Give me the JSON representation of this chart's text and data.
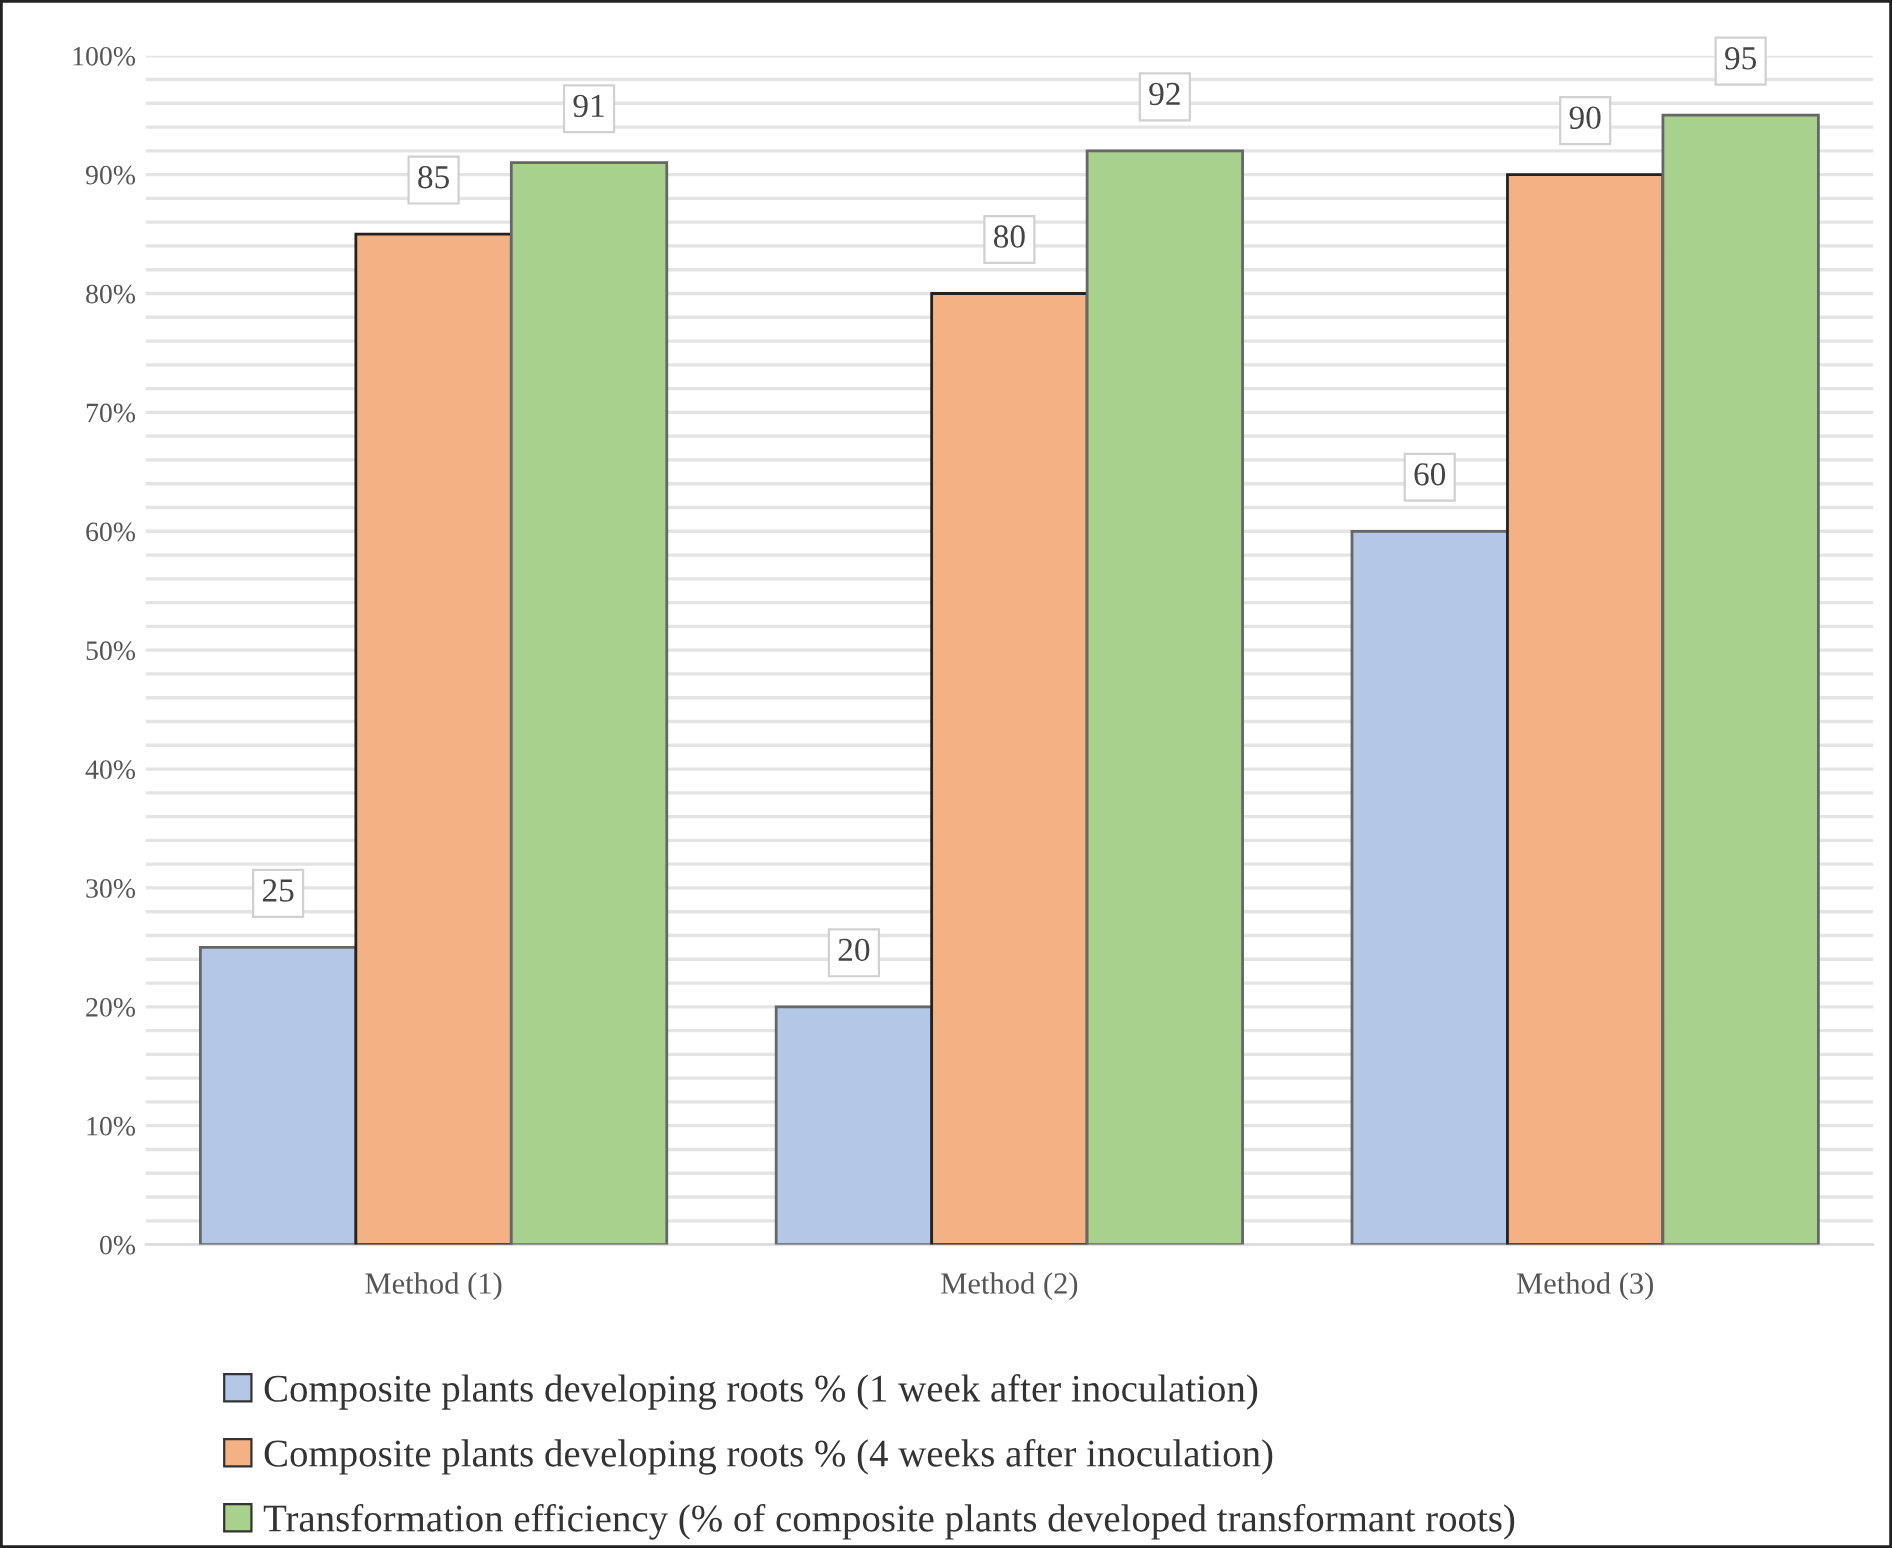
{
  "chart_data": {
    "type": "bar",
    "categories": [
      "Method (1)",
      "Method (2)",
      "Method (3)"
    ],
    "series": [
      {
        "name": "Composite plants developing roots % (1 week after inoculation)",
        "color": "#b4c7e7",
        "values": [
          25,
          20,
          60
        ]
      },
      {
        "name": "Composite plants developing roots % (4 weeks after inoculation)",
        "color": "#f4b183",
        "values": [
          85,
          80,
          90
        ]
      },
      {
        "name": "Transformation efficiency (% of composite plants developed transformant roots)",
        "color": "#a9d18e",
        "values": [
          91,
          92,
          95
        ]
      }
    ],
    "ylim": [
      0,
      100
    ],
    "yticks": [
      {
        "value": 0,
        "label": "0%"
      },
      {
        "value": 2,
        "label": null
      },
      {
        "value": 4,
        "label": null
      },
      {
        "value": 6,
        "label": null
      },
      {
        "value": 8,
        "label": null
      },
      {
        "value": 10,
        "label": "10%"
      },
      {
        "value": 12,
        "label": null
      },
      {
        "value": 14,
        "label": null
      },
      {
        "value": 16,
        "label": null
      },
      {
        "value": 18,
        "label": null
      },
      {
        "value": 20,
        "label": "20%"
      },
      {
        "value": 22,
        "label": null
      },
      {
        "value": 24,
        "label": null
      },
      {
        "value": 26,
        "label": null
      },
      {
        "value": 28,
        "label": null
      },
      {
        "value": 30,
        "label": "30%"
      },
      {
        "value": 32,
        "label": null
      },
      {
        "value": 34,
        "label": null
      },
      {
        "value": 36,
        "label": null
      },
      {
        "value": 38,
        "label": null
      },
      {
        "value": 40,
        "label": "40%"
      },
      {
        "value": 42,
        "label": null
      },
      {
        "value": 44,
        "label": null
      },
      {
        "value": 46,
        "label": null
      },
      {
        "value": 48,
        "label": null
      },
      {
        "value": 50,
        "label": "50%"
      },
      {
        "value": 52,
        "label": null
      },
      {
        "value": 54,
        "label": null
      },
      {
        "value": 56,
        "label": null
      },
      {
        "value": 58,
        "label": null
      },
      {
        "value": 60,
        "label": "60%"
      },
      {
        "value": 62,
        "label": null
      },
      {
        "value": 64,
        "label": null
      },
      {
        "value": 66,
        "label": null
      },
      {
        "value": 68,
        "label": null
      },
      {
        "value": 70,
        "label": "70%"
      },
      {
        "value": 72,
        "label": null
      },
      {
        "value": 74,
        "label": null
      },
      {
        "value": 76,
        "label": null
      },
      {
        "value": 78,
        "label": null
      },
      {
        "value": 80,
        "label": "80%"
      },
      {
        "value": 82,
        "label": null
      },
      {
        "value": 84,
        "label": null
      },
      {
        "value": 86,
        "label": null
      },
      {
        "value": 88,
        "label": null
      },
      {
        "value": 90,
        "label": "90%"
      },
      {
        "value": 92,
        "label": null
      },
      {
        "value": 94,
        "label": null
      },
      {
        "value": 96,
        "label": null
      },
      {
        "value": 98,
        "label": null
      },
      {
        "value": 100,
        "label": "100%"
      }
    ],
    "grid": "y",
    "legend": "bottom",
    "data_labels": true
  }
}
